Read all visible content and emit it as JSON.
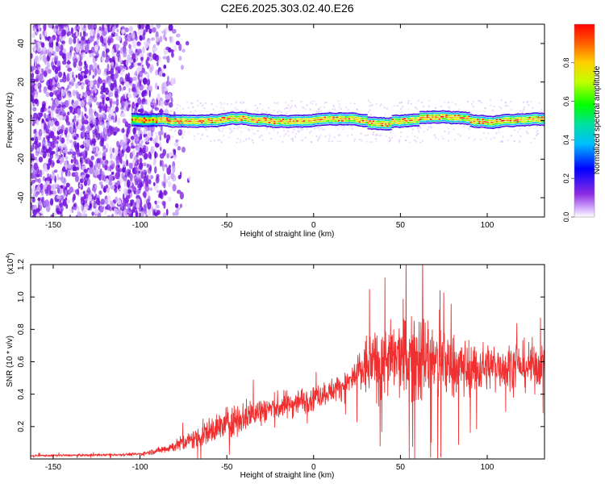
{
  "title": "C2E6.2025.303.02.40.E26",
  "colors": {
    "signal": "#f03030",
    "frame": "#000000",
    "noise_purple": "#8a2be2"
  },
  "chart_data": [
    {
      "type": "heatmap",
      "name": "spectrogram",
      "xlabel": "Height of straight line (km)",
      "ylabel": "Frequency (Hz)",
      "xlim": [
        -163,
        133
      ],
      "ylim": [
        -50,
        50
      ],
      "xticks": [
        -150,
        -100,
        -50,
        0,
        50,
        100
      ],
      "yticks": [
        40,
        20,
        0,
        -20,
        -40
      ],
      "xtick_labels": [
        "-150",
        "-100",
        "-50",
        "0",
        "50",
        "100"
      ],
      "ytick_labels": [
        "40",
        "20",
        "0",
        "-20",
        "-40"
      ],
      "colorbar": {
        "label": "Normalized spectral amplitude",
        "range": [
          0,
          1
        ],
        "ticks": [
          0.0,
          0.2,
          0.4,
          0.6,
          0.8
        ],
        "tick_labels": [
          "0.0",
          "0.2",
          "0.4",
          "0.6",
          "0.8"
        ],
        "colormap": "rainbow (violet → blue → cyan → green → yellow → orange → red)"
      },
      "features": {
        "noise_region_x": [
          -163,
          -80
        ],
        "noise_amplitude": 0.15,
        "signal_band_start_x": -105,
        "signal_center_freq_hz": 0,
        "signal_peak_amplitude": 0.95
      }
    },
    {
      "type": "line",
      "name": "snr",
      "xlabel": "Height of straight line (km)",
      "ylabel": "SNR (10 * v/v)",
      "scale_label": "(x10",
      "scale_exp": "4",
      "scale_close": ")",
      "xlim": [
        -163,
        133
      ],
      "ylim": [
        0,
        1.2
      ],
      "xticks": [
        -150,
        -100,
        -50,
        0,
        50,
        100
      ],
      "yticks": [
        0.2,
        0.4,
        0.6,
        0.8,
        1.0,
        1.2
      ],
      "xtick_labels": [
        "-150",
        "-100",
        "-50",
        "0",
        "50",
        "100"
      ],
      "ytick_labels": [
        "0.2",
        "0.4",
        "0.6",
        "0.8",
        "1.0",
        "1.2"
      ],
      "series": [
        {
          "name": "SNR",
          "envelope": {
            "x": [
              -163,
              -120,
              -100,
              -90,
              -80,
              -70,
              -60,
              -50,
              -40,
              -30,
              -20,
              -10,
              0,
              10,
              20,
              25,
              30,
              40,
              50,
              55,
              60,
              65,
              70,
              80,
              90,
              100,
              110,
              120,
              133
            ],
            "mean": [
              0.02,
              0.025,
              0.03,
              0.05,
              0.08,
              0.12,
              0.17,
              0.22,
              0.26,
              0.3,
              0.32,
              0.35,
              0.38,
              0.42,
              0.47,
              0.52,
              0.57,
              0.6,
              0.62,
              0.63,
              0.64,
              0.62,
              0.6,
              0.58,
              0.56,
              0.57,
              0.58,
              0.57,
              0.58
            ],
            "spread": [
              0.005,
              0.006,
              0.008,
              0.015,
              0.03,
              0.05,
              0.07,
              0.08,
              0.08,
              0.08,
              0.07,
              0.07,
              0.06,
              0.06,
              0.07,
              0.1,
              0.16,
              0.18,
              0.2,
              0.24,
              0.26,
              0.24,
              0.2,
              0.16,
              0.14,
              0.12,
              0.12,
              0.12,
              0.12
            ]
          }
        }
      ]
    }
  ]
}
